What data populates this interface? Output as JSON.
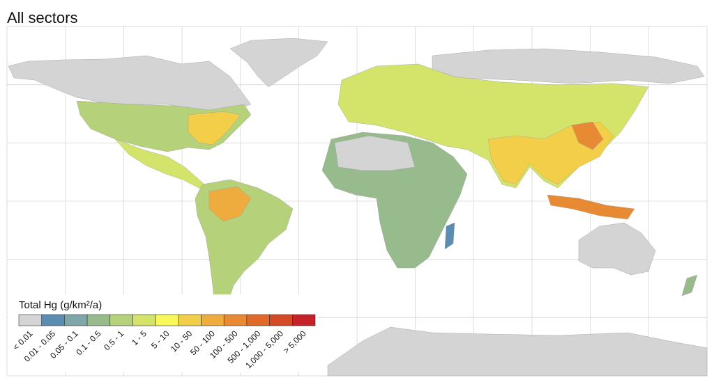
{
  "title": "All sectors",
  "legend": {
    "title": "Total Hg (g/km²/a)",
    "classes": [
      {
        "label": "< 0.01",
        "color": "#d4d4d4"
      },
      {
        "label": "0.01 - 0.05",
        "color": "#5b8db2"
      },
      {
        "label": "0.05 - 0.1",
        "color": "#7fa6a8"
      },
      {
        "label": "0.1 - 0.5",
        "color": "#98bb8e"
      },
      {
        "label": "0.5 - 1",
        "color": "#b5d27a"
      },
      {
        "label": "1 - 5",
        "color": "#d4e46b"
      },
      {
        "label": "5 - 10",
        "color": "#f8f859"
      },
      {
        "label": "10 - 50",
        "color": "#f3cf49"
      },
      {
        "label": "50 - 100",
        "color": "#efac3e"
      },
      {
        "label": "100 - 500",
        "color": "#e88a34"
      },
      {
        "label": "500 - 1,000",
        "color": "#df6a2c"
      },
      {
        "label": "1,000 - 5,000",
        "color": "#d24a26"
      },
      {
        "label": "> 5,000",
        "color": "#c5222a"
      }
    ]
  }
}
